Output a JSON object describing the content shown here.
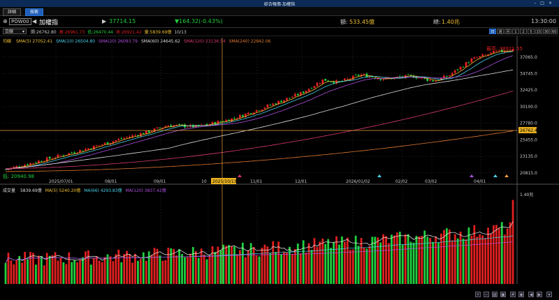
{
  "window": {
    "title": "綜合報價-加權指"
  },
  "tabs": [
    {
      "label": "詳細"
    },
    {
      "label": "技術"
    }
  ],
  "header": {
    "symbol_code": "POW00",
    "symbol_name": "加權指",
    "price": "37714.15",
    "change": "▼164.32(-0.43%)",
    "amount_label": "額:",
    "amount": "533.45億",
    "volume_label": "總:",
    "volume": "1.40兆",
    "time": "13:30:00"
  },
  "controls": {
    "period": "日線",
    "ohlc": [
      "開:26762.80",
      "高:26961.73",
      "低:26470.44",
      "收:26921.42",
      "量:5839.69億",
      "10/13"
    ],
    "periods": [
      "日",
      "週",
      "月",
      "1",
      "2",
      "5",
      "15",
      "30",
      "60"
    ],
    "active_period": "日"
  },
  "ma_legend": {
    "label": "均線",
    "items": [
      {
        "text": "SMA(5) 27052.41",
        "color": "#f0c030"
      },
      {
        "text": "SMA(10) 26504.80",
        "color": "#4ad0e8"
      },
      {
        "text": "SMA(20) 26093.79",
        "color": "#b050e0"
      },
      {
        "text": "SMA(60) 24645.62",
        "color": "#dddddd"
      },
      {
        "text": "SMA(120) 23136.54",
        "color": "#d83a70"
      },
      {
        "text": "SMA(240) 22842.06",
        "color": "#e07830"
      }
    ]
  },
  "volume_legend": {
    "label": "成交量",
    "items": [
      {
        "text": "5839.69億",
        "color": "#dddddd"
      },
      {
        "text": "MA(5) 5240.20億",
        "color": "#f0c030"
      },
      {
        "text": "MA(66) 4293.83億",
        "color": "#4ad0e8"
      },
      {
        "text": "MA(120) 3837.42億",
        "color": "#b050e0"
      }
    ]
  },
  "chart_data": {
    "type": "candlestick",
    "y_ticks": [
      "37065.0",
      "34745.0",
      "32425.0",
      "30100.0",
      "27780.0",
      "25455.0",
      "23135.0",
      "20815.0"
    ],
    "y_values": [
      37065,
      34745,
      32425,
      30100,
      27780,
      25455,
      23135,
      20815
    ],
    "ylim": [
      20400,
      39200
    ],
    "x_ticks": [
      "2025/07/01",
      "08/01",
      "09/01",
      "10",
      "11/01",
      "12/01",
      "2026/01/02",
      "02/02",
      "03/02",
      "04/01"
    ],
    "crosshair_date": "2025/10/13",
    "crosshair_price": "26762.4",
    "high_label": "最高: 38921.55",
    "low_label": "低: 20940.98",
    "volume_max_label": "1.40兆"
  },
  "colors": {
    "up": "#e02020",
    "down": "#20d040",
    "grid": "#444",
    "crosshair": "#f0a040",
    "accent": "#1f5fb8"
  }
}
